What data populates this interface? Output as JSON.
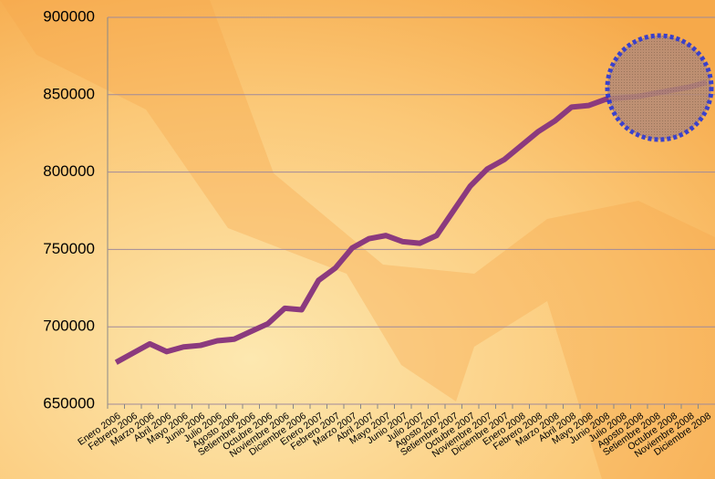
{
  "chart_data": {
    "type": "line",
    "categories": [
      "Enero 2006",
      "Febrero 2006",
      "Marzo 2006",
      "Abril 2006",
      "Mayo 2006",
      "Junio 2006",
      "Julio 2006",
      "Agosto 2006",
      "Setiembre 2006",
      "Octubre 2006",
      "Noviembre 2006",
      "Diciembre 2006",
      "Enero 2007",
      "Febrero 2007",
      "Marzo 2007",
      "Abril 2007",
      "Mayo 2007",
      "Junio 2007",
      "Julio 2007",
      "Agosto 2007",
      "Setiembre 2007",
      "Octubre 2007",
      "Noviembre 2007",
      "Diciembre 2007",
      "Enero 2008",
      "Febrero 2008",
      "Marzo 2008",
      "Abril 2008",
      "Mayo 2008",
      "Junio 2008",
      "Julio 2008",
      "Agosto 2008",
      "Setiembre 2008",
      "Octubre 2008",
      "Noviembre 2008",
      "Diciembre 2008"
    ],
    "values": [
      677000,
      683000,
      689000,
      684000,
      687000,
      688000,
      691000,
      692000,
      697000,
      702000,
      712000,
      711000,
      730000,
      738000,
      751000,
      757000,
      759000,
      755000,
      754000,
      759000,
      775000,
      791000,
      802000,
      808000,
      817000,
      826000,
      833000,
      842000,
      843000,
      847000,
      848000,
      849000,
      851000,
      853000,
      855000,
      858000
    ],
    "color": "#8b3a7e",
    "ylim": [
      650000,
      900000
    ],
    "yticks": [
      650000,
      700000,
      750000,
      800000,
      850000,
      900000
    ],
    "grid": true
  }
}
